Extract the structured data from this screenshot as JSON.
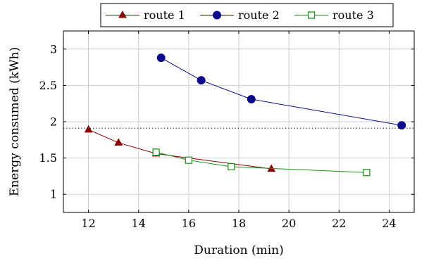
{
  "chart_data": {
    "type": "line",
    "xlabel": "Duration (min)",
    "ylabel": "Energy consumed (kWh)",
    "xlim": [
      11,
      25
    ],
    "ylim": [
      0.75,
      3.25
    ],
    "xticks": [
      12,
      14,
      16,
      18,
      20,
      22,
      24
    ],
    "yticks": [
      1,
      1.5,
      2,
      2.5,
      3
    ],
    "xtick_labels": [
      "12",
      "14",
      "16",
      "18",
      "20",
      "22",
      "24"
    ],
    "ytick_labels": [
      "1",
      "1.5",
      "2",
      "2.5",
      "3"
    ],
    "grid": true,
    "legend_position": "top-center",
    "reference_line": {
      "y": 1.91,
      "style": "dotted"
    },
    "series": [
      {
        "name": "route 1",
        "color": "#8b0000",
        "marker": "filled-triangle",
        "x": [
          12,
          13.2,
          14.7,
          19.3
        ],
        "y": [
          1.89,
          1.71,
          1.56,
          1.35
        ]
      },
      {
        "name": "route 2",
        "color": "#0b0b8b",
        "marker": "filled-circle",
        "x": [
          14.9,
          16.5,
          18.5,
          24.5
        ],
        "y": [
          2.88,
          2.57,
          2.31,
          1.95
        ]
      },
      {
        "name": "route 3",
        "color": "#1a8a1a",
        "marker": "open-square",
        "x": [
          14.7,
          16,
          17.7,
          23.1
        ],
        "y": [
          1.58,
          1.47,
          1.38,
          1.3
        ]
      }
    ]
  }
}
